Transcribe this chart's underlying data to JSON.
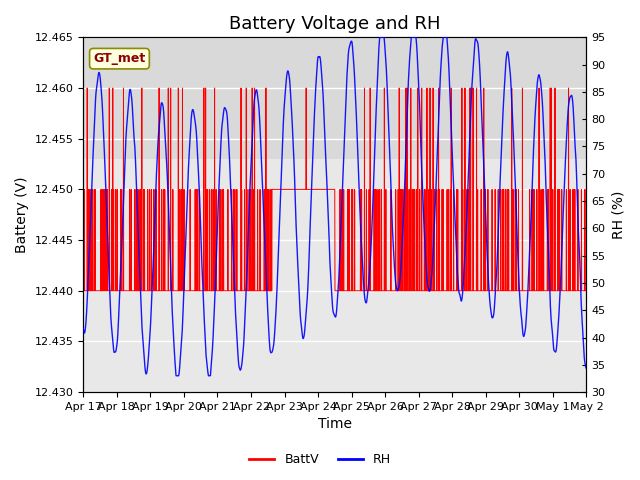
{
  "title": "Battery Voltage and RH",
  "xlabel": "Time",
  "ylabel_left": "Battery (V)",
  "ylabel_right": "RH (%)",
  "ylim_left": [
    12.43,
    12.465
  ],
  "ylim_right": [
    30,
    95
  ],
  "yticks_left": [
    12.43,
    12.435,
    12.44,
    12.445,
    12.45,
    12.455,
    12.46,
    12.465
  ],
  "yticks_right": [
    30,
    35,
    40,
    45,
    50,
    55,
    60,
    65,
    70,
    75,
    80,
    85,
    90,
    95
  ],
  "xtick_labels": [
    "Apr 17",
    "Apr 18",
    "Apr 19",
    "Apr 20",
    "Apr 21",
    "Apr 22",
    "Apr 23",
    "Apr 24",
    "Apr 25",
    "Apr 26",
    "Apr 27",
    "Apr 28",
    "Apr 29",
    "Apr 30",
    "May 1",
    "May 2"
  ],
  "legend_entries": [
    "BattV",
    "RH"
  ],
  "legend_colors": [
    "red",
    "blue"
  ],
  "annotation_text": "GT_met",
  "batt_color": "red",
  "rh_color": "blue",
  "plot_bg_color": "#e8e8e8",
  "plot_bg_band_color": "#d8d8d8",
  "title_fontsize": 13,
  "axis_label_fontsize": 10,
  "tick_fontsize": 8,
  "num_days": 16,
  "batt_base": 12.44,
  "batt_mid": 12.45,
  "batt_high": 12.46,
  "rh_base": 65,
  "rh_amplitude": 20
}
